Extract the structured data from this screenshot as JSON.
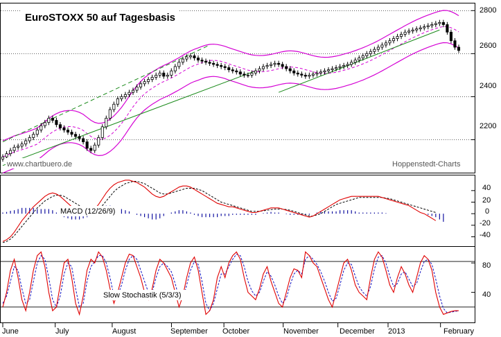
{
  "chart_data": [
    {
      "type": "candlestick",
      "title": "EuroSTOXX 50 auf Tagesbasis",
      "annotations": [
        "www.chartbuero.de",
        "Hoppenstedt-Charts"
      ],
      "ylim": [
        2050,
        2830
      ],
      "yticks": [
        "2800",
        "2600",
        "2400",
        "2200"
      ],
      "grid": true,
      "series": [
        {
          "close": [
            2120,
            2135,
            2150,
            2165,
            2170,
            2180,
            2195,
            2210,
            2225,
            2245,
            2265,
            2280,
            2300,
            2290,
            2270,
            2255,
            2245,
            2235,
            2225,
            2215,
            2205,
            2190,
            2160,
            2150,
            2175,
            2210,
            2260,
            2300,
            2340,
            2365,
            2390,
            2400,
            2410,
            2420,
            2430,
            2445,
            2460,
            2470,
            2480,
            2490,
            2500,
            2510,
            2495,
            2500,
            2520,
            2540,
            2560,
            2575,
            2585,
            2590,
            2580,
            2570,
            2565,
            2560,
            2555,
            2550,
            2545,
            2540,
            2535,
            2525,
            2520,
            2515,
            2505,
            2500,
            2500,
            2510,
            2520,
            2530,
            2540,
            2545,
            2550,
            2555,
            2550,
            2540,
            2530,
            2520,
            2510,
            2505,
            2500,
            2495,
            2500,
            2505,
            2510,
            2515,
            2520,
            2525,
            2530,
            2535,
            2540,
            2545,
            2550,
            2560,
            2570,
            2580,
            2590,
            2600,
            2610,
            2620,
            2630,
            2640,
            2650,
            2660,
            2670,
            2680,
            2690,
            2700,
            2705,
            2710,
            2715,
            2720,
            2725,
            2730,
            2735,
            2740,
            2745,
            2735,
            2700,
            2660,
            2630,
            2615
          ]
        }
      ],
      "overlays": [
        "upper band",
        "lower band",
        "moving average",
        "trend lines"
      ]
    },
    {
      "type": "line",
      "panel_label": "MACD (12/26/9)",
      "ylim": [
        -55,
        65
      ],
      "yticks": [
        "40",
        "20",
        "0",
        "-20",
        "-40"
      ],
      "series": [
        {
          "values": [
            -48,
            -45,
            -40,
            -32,
            -22,
            -12,
            -4,
            4,
            12,
            18,
            24,
            30,
            34,
            36,
            34,
            30,
            24,
            18,
            12,
            8,
            4,
            2,
            0,
            2,
            8,
            16,
            26,
            36,
            44,
            50,
            54,
            56,
            58,
            58,
            56,
            54,
            50,
            46,
            40,
            34,
            30,
            28,
            30,
            34,
            38,
            42,
            46,
            48,
            48,
            46,
            42,
            38,
            34,
            30,
            26,
            22,
            18,
            16,
            14,
            12,
            12,
            10,
            8,
            6,
            4,
            2,
            2,
            4,
            6,
            8,
            10,
            10,
            10,
            8,
            6,
            4,
            2,
            0,
            -2,
            -4,
            -6,
            -4,
            0,
            4,
            8,
            12,
            16,
            20,
            24,
            26,
            28,
            30,
            30,
            30,
            30,
            30,
            30,
            30,
            30,
            28,
            26,
            24,
            22,
            20,
            18,
            16,
            14,
            10,
            6,
            2,
            0,
            -4,
            -8,
            -12
          ]
        },
        {
          "values": [
            -50,
            -48,
            -44,
            -38,
            -30,
            -22,
            -14,
            -6,
            2,
            10,
            16,
            22,
            26,
            30,
            32,
            32,
            30,
            26,
            22,
            18,
            14,
            10,
            6,
            4,
            4,
            8,
            14,
            22,
            30,
            38,
            44,
            48,
            52,
            54,
            56,
            56,
            54,
            52,
            48,
            44,
            40,
            36,
            34,
            34,
            36,
            38,
            40,
            42,
            44,
            44,
            44,
            42,
            40,
            36,
            32,
            28,
            24,
            20,
            18,
            16,
            14,
            12,
            10,
            8,
            6,
            4,
            4,
            4,
            5,
            6,
            7,
            8,
            8,
            8,
            7,
            6,
            4,
            2,
            0,
            -2,
            -4,
            -4,
            -2,
            0,
            4,
            8,
            12,
            16,
            18,
            20,
            22,
            24,
            26,
            28,
            28,
            28,
            28,
            28,
            28,
            28,
            27,
            26,
            24,
            22,
            20,
            18,
            16,
            14,
            12,
            10,
            8,
            6,
            4,
            2
          ]
        }
      ],
      "histogram": [
        2,
        3,
        5,
        6,
        8,
        10,
        10,
        10,
        10,
        8,
        8,
        8,
        8,
        6,
        2,
        -2,
        -6,
        -8,
        -10,
        -10,
        -10,
        -8,
        -6,
        -2,
        4,
        8,
        12,
        14,
        14,
        12,
        10,
        8,
        6,
        4,
        0,
        -2,
        -4,
        -6,
        -8,
        -10,
        -10,
        -8,
        -4,
        0,
        2,
        4,
        6,
        6,
        4,
        2,
        -2,
        -4,
        -6,
        -6,
        -6,
        -6,
        -6,
        -4,
        -4,
        -4,
        -2,
        -2,
        -2,
        -2,
        -2,
        -2,
        -2,
        0,
        1,
        2,
        3,
        2,
        2,
        0,
        -1,
        -2,
        -2,
        -2,
        -2,
        -2,
        -2,
        0,
        2,
        4,
        4,
        4,
        4,
        4,
        6,
        6,
        6,
        6,
        4,
        2,
        2,
        2,
        2,
        2,
        2,
        2,
        1,
        0,
        0,
        0,
        0,
        0,
        0,
        0,
        0,
        0,
        0,
        -2,
        -4,
        -6,
        -10,
        -14
      ]
    },
    {
      "type": "line",
      "panel_label": "Slow Stochastik (5/3/3)",
      "ylim": [
        0,
        100
      ],
      "yticks": [
        "80",
        "40"
      ],
      "hlines": [
        82,
        20
      ],
      "series": [
        {
          "values": [
            20,
            40,
            70,
            85,
            60,
            30,
            15,
            40,
            70,
            90,
            95,
            75,
            40,
            15,
            20,
            50,
            80,
            85,
            60,
            25,
            10,
            35,
            70,
            85,
            80,
            95,
            88,
            70,
            45,
            25,
            40,
            60,
            80,
            92,
            90,
            75,
            60,
            40,
            30,
            45,
            70,
            85,
            80,
            70,
            60,
            40,
            20,
            35,
            60,
            80,
            88,
            70,
            40,
            10,
            15,
            30,
            60,
            75,
            60,
            80,
            90,
            95,
            85,
            60,
            40,
            35,
            30,
            45,
            65,
            75,
            55,
            40,
            25,
            20,
            40,
            60,
            72,
            70,
            60,
            95,
            90,
            80,
            75,
            60,
            45,
            30,
            20,
            40,
            60,
            80,
            85,
            70,
            50,
            40,
            35,
            30,
            60,
            85,
            95,
            88,
            70,
            50,
            40,
            60,
            75,
            65,
            50,
            40,
            60,
            80,
            90,
            85,
            70,
            40,
            20,
            10,
            12,
            14,
            15,
            15
          ]
        },
        {
          "values": [
            25,
            35,
            55,
            75,
            70,
            45,
            25,
            30,
            55,
            80,
            90,
            85,
            60,
            30,
            20,
            35,
            65,
            80,
            75,
            45,
            20,
            25,
            55,
            75,
            82,
            90,
            90,
            80,
            60,
            35,
            35,
            50,
            70,
            85,
            90,
            85,
            70,
            55,
            40,
            40,
            60,
            75,
            80,
            75,
            68,
            52,
            32,
            30,
            50,
            70,
            82,
            78,
            55,
            25,
            15,
            25,
            45,
            65,
            65,
            75,
            85,
            92,
            90,
            75,
            55,
            42,
            35,
            40,
            55,
            68,
            62,
            50,
            35,
            25,
            32,
            50,
            65,
            70,
            65,
            85,
            90,
            85,
            78,
            68,
            55,
            40,
            28,
            32,
            50,
            70,
            80,
            78,
            62,
            48,
            40,
            35,
            48,
            72,
            88,
            90,
            80,
            62,
            48,
            52,
            65,
            68,
            58,
            48,
            52,
            68,
            82,
            85,
            78,
            58,
            35,
            18,
            12,
            13,
            14,
            15
          ]
        }
      ]
    }
  ],
  "x_axis": {
    "labels": [
      "June",
      "July",
      "August",
      "September",
      "October",
      "November",
      "December",
      "2013",
      "February"
    ]
  },
  "colors": {
    "candle_up": "#ffffff",
    "candle_down": "#000000",
    "bands": "#d400d4",
    "moving_average": "#d400d4",
    "trend": "#1a8a1a",
    "macd_line": "#e00000",
    "signal_line": "#000000",
    "histogram": "#1010a0",
    "stoch_k": "#e00000",
    "stoch_d": "#1010c0"
  }
}
